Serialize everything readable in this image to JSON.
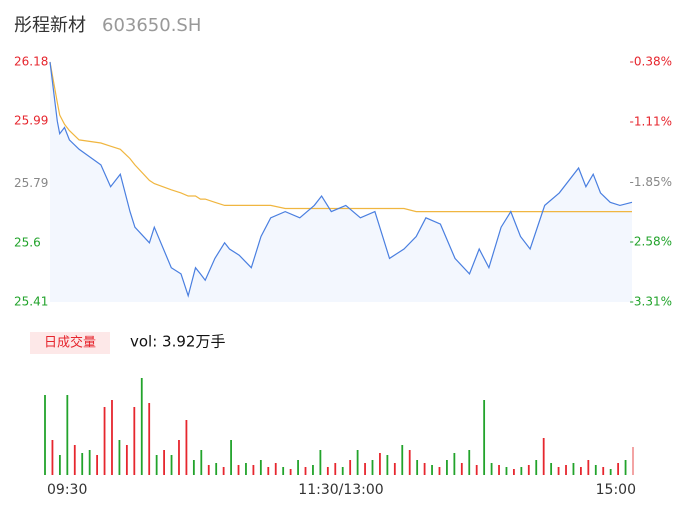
{
  "header": {
    "name": "彤程新材",
    "code": "603650.SH"
  },
  "chart_data": [
    {
      "type": "line",
      "x": [
        0,
        3,
        4,
        6,
        8,
        12,
        21,
        25,
        29,
        33,
        35,
        41,
        43,
        50,
        54,
        57,
        60,
        62,
        64,
        68,
        72,
        74,
        78,
        83,
        87,
        91,
        97,
        103,
        109,
        112,
        116,
        122,
        128,
        134,
        140,
        144,
        146,
        151,
        155,
        161,
        167,
        173,
        177,
        181,
        186,
        190,
        194,
        198,
        204,
        210,
        218,
        221,
        224,
        227,
        231,
        235,
        240
      ],
      "series": [
        {
          "name": "price",
          "color": "#4a7fe0",
          "values": [
            26.18,
            25.99,
            25.95,
            25.97,
            25.93,
            25.9,
            25.85,
            25.78,
            25.82,
            25.7,
            25.65,
            25.6,
            25.65,
            25.52,
            25.5,
            25.43,
            25.52,
            25.5,
            25.48,
            25.55,
            25.6,
            25.58,
            25.56,
            25.52,
            25.62,
            25.68,
            25.7,
            25.68,
            25.72,
            25.75,
            25.7,
            25.72,
            25.68,
            25.7,
            25.55,
            25.57,
            25.58,
            25.62,
            25.68,
            25.66,
            25.55,
            25.5,
            25.58,
            25.52,
            25.65,
            25.7,
            25.62,
            25.58,
            25.72,
            25.76,
            25.84,
            25.78,
            25.82,
            25.76,
            25.73,
            25.72,
            25.73
          ]
        },
        {
          "name": "average",
          "color": "#f0b640",
          "values": [
            26.18,
            26.05,
            26.01,
            25.98,
            25.96,
            25.93,
            25.92,
            25.91,
            25.9,
            25.87,
            25.85,
            25.8,
            25.79,
            25.77,
            25.76,
            25.75,
            25.75,
            25.74,
            25.74,
            25.73,
            25.72,
            25.72,
            25.72,
            25.72,
            25.72,
            25.72,
            25.71,
            25.71,
            25.71,
            25.71,
            25.71,
            25.71,
            25.71,
            25.71,
            25.71,
            25.71,
            25.71,
            25.7,
            25.7,
            25.7,
            25.7,
            25.7,
            25.7,
            25.7,
            25.7,
            25.7,
            25.7,
            25.7,
            25.7,
            25.7,
            25.7,
            25.7,
            25.7,
            25.7,
            25.7,
            25.7,
            25.7
          ]
        }
      ],
      "area_color": "#f3f7fe",
      "xlim": [
        0,
        240
      ],
      "xticks": [
        {
          "value": 0,
          "label": "09:30"
        },
        {
          "value": 120,
          "label": "11:30/13:00"
        },
        {
          "value": 240,
          "label": "15:00"
        }
      ],
      "ylim": [
        25.41,
        26.18
      ],
      "yticks": [
        25.41,
        25.6,
        25.79,
        25.99,
        26.18
      ],
      "ytick_colors": [
        "#22a32b",
        "#22a32b",
        "#888888",
        "#e6262e",
        "#e6262e"
      ],
      "y2lim": [
        -3.31,
        -0.38
      ],
      "y2ticks": [
        {
          "value": -3.31,
          "label": "-3.31%"
        },
        {
          "value": -2.58,
          "label": "-2.58%"
        },
        {
          "value": -1.85,
          "label": "-1.85%"
        },
        {
          "value": -1.11,
          "label": "-1.11%"
        },
        {
          "value": -0.38,
          "label": "-0.38%"
        }
      ],
      "y2tick_colors": [
        "#22a32b",
        "#22a32b",
        "#888888",
        "#e6262e",
        "#e6262e"
      ],
      "grid": false
    },
    {
      "type": "bar",
      "legend": "日成交量",
      "summary": "vol: 3.92万手",
      "values": [
        80,
        35,
        20,
        80,
        30,
        22,
        25,
        20,
        68,
        75,
        35,
        30,
        68,
        97,
        72,
        20,
        25,
        20,
        35,
        55,
        15,
        25,
        10,
        12,
        8,
        35,
        10,
        12,
        10,
        15,
        8,
        12,
        8,
        6,
        15,
        8,
        10,
        25,
        8,
        12,
        8,
        15,
        25,
        12,
        15,
        22,
        20,
        12,
        30,
        25,
        15,
        12,
        10,
        8,
        15,
        22,
        12,
        25,
        10,
        75,
        12,
        10,
        8,
        6,
        8,
        10,
        15,
        37,
        12,
        8,
        10,
        12,
        8,
        15,
        10,
        8,
        6,
        12,
        15,
        28
      ],
      "colors": [
        "#22a32b",
        "#e6262e",
        "#22a32b",
        "#22a32b",
        "#e6262e",
        "#22a32b",
        "#22a32b",
        "#e6262e",
        "#e6262e",
        "#e6262e",
        "#22a32b",
        "#e6262e",
        "#e6262e",
        "#22a32b",
        "#e6262e",
        "#22a32b",
        "#e6262e",
        "#22a32b",
        "#e6262e",
        "#e6262e",
        "#22a32b",
        "#22a32b",
        "#e6262e",
        "#22a32b",
        "#e6262e",
        "#22a32b",
        "#e6262e",
        "#22a32b",
        "#e6262e",
        "#22a32b",
        "#e6262e",
        "#e6262e",
        "#22a32b",
        "#e6262e",
        "#22a32b",
        "#e6262e",
        "#22a32b",
        "#22a32b",
        "#e6262e",
        "#e6262e",
        "#22a32b",
        "#e6262e",
        "#22a32b",
        "#e6262e",
        "#22a32b",
        "#e6262e",
        "#22a32b",
        "#e6262e",
        "#22a32b",
        "#e6262e",
        "#22a32b",
        "#e6262e",
        "#22a32b",
        "#e6262e",
        "#22a32b",
        "#22a32b",
        "#e6262e",
        "#22a32b",
        "#e6262e",
        "#22a32b",
        "#22a32b",
        "#e6262e",
        "#22a32b",
        "#e6262e",
        "#22a32b",
        "#e6262e",
        "#22a32b",
        "#e6262e",
        "#22a32b",
        "#e6262e",
        "#e6262e",
        "#22a32b",
        "#e6262e",
        "#e6262e",
        "#22a32b",
        "#e6262e",
        "#22a32b",
        "#e6262e",
        "#22a32b",
        "#f29b9b"
      ],
      "ylim": [
        0,
        100
      ]
    }
  ]
}
